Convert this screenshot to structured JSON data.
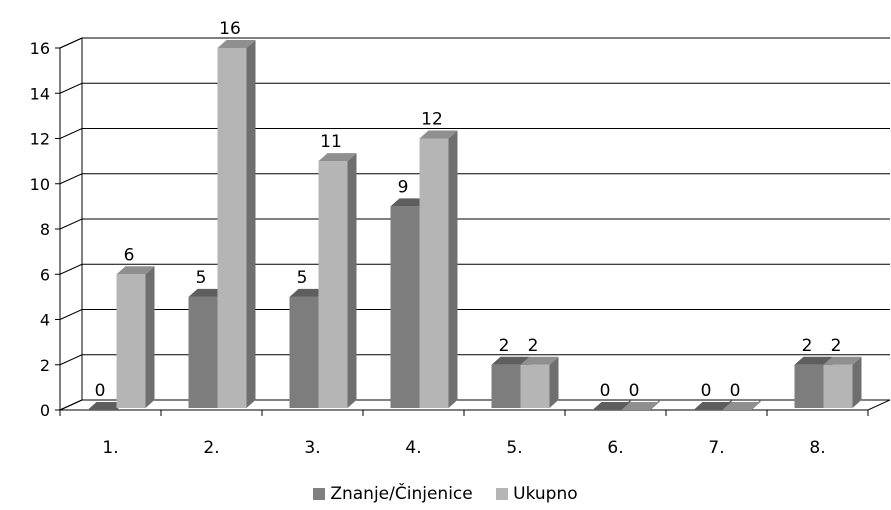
{
  "chart_data": {
    "type": "bar",
    "style": "3d-clustered-column",
    "categories": [
      "1.",
      "2.",
      "3.",
      "4.",
      "5.",
      "6.",
      "7.",
      "8."
    ],
    "series": [
      {
        "name": "Znanje/Činjenice",
        "values": [
          0,
          5,
          5,
          9,
          2,
          0,
          0,
          2
        ],
        "color": "#808080"
      },
      {
        "name": "Ukupno",
        "values": [
          6,
          16,
          11,
          12,
          2,
          0,
          0,
          2
        ],
        "color": "#b5b5b5"
      }
    ],
    "y_ticks": [
      "0",
      "2",
      "4",
      "6",
      "8",
      "10",
      "12",
      "14",
      "16"
    ],
    "ylim": [
      0,
      16
    ],
    "grid": true,
    "data_labels": true,
    "legend_position": "bottom"
  }
}
